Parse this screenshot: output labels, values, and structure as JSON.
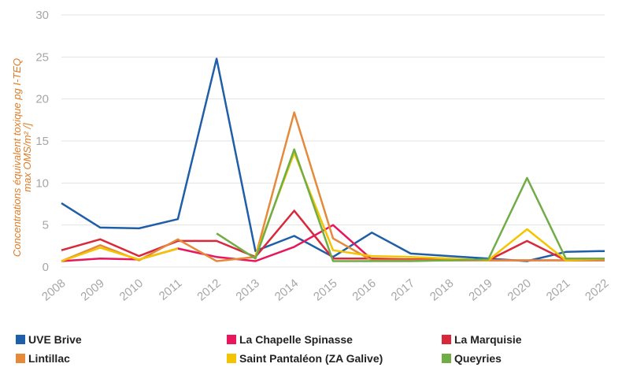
{
  "chart_data": {
    "type": "line",
    "x": [
      "2008",
      "2009",
      "2010",
      "2011",
      "2012",
      "2013",
      "2014",
      "2015",
      "2016",
      "2017",
      "2018",
      "2019",
      "2020",
      "2021",
      "2022"
    ],
    "ylabel_line1": "Concentrations équivalent toxique pg I-TEQ",
    "ylabel_line2": "max OMS/m² /]",
    "ylim": [
      0,
      30
    ],
    "yticks": [
      "0",
      "5",
      "10",
      "15",
      "20",
      "25",
      "30"
    ],
    "grid": true,
    "legend_position": "bottom",
    "series": [
      {
        "name": "UVE Brive",
        "color": "#1f5ea8",
        "values": [
          7.6,
          4.7,
          4.6,
          5.7,
          24.8,
          1.9,
          3.7,
          1.2,
          4.1,
          1.6,
          1.3,
          1.0,
          0.7,
          1.8,
          1.9
        ]
      },
      {
        "name": "La Chapelle Spinasse",
        "color": "#e8175d",
        "values": [
          0.7,
          1.0,
          0.9,
          2.2,
          1.2,
          0.7,
          2.4,
          5.0,
          0.9,
          0.9,
          0.8,
          0.8,
          0.8,
          0.8,
          0.8
        ]
      },
      {
        "name": "La Marquisie",
        "color": "#d9283a",
        "values": [
          2.0,
          3.3,
          1.3,
          3.1,
          3.1,
          1.2,
          6.7,
          1.0,
          1.0,
          0.9,
          0.9,
          0.8,
          3.1,
          0.8,
          0.8
        ]
      },
      {
        "name": "Lintillac",
        "color": "#e58a3a",
        "values": [
          0.7,
          2.6,
          0.8,
          3.3,
          0.7,
          1.2,
          18.4,
          3.4,
          0.8,
          0.8,
          0.8,
          0.8,
          0.8,
          0.8,
          0.8
        ]
      },
      {
        "name": "Saint Pantaléon (ZA Galive)",
        "color": "#f5c400",
        "values": [
          0.7,
          2.3,
          0.9,
          2.2,
          null,
          1.3,
          13.6,
          2.0,
          1.3,
          1.2,
          1.0,
          0.8,
          4.5,
          0.8,
          1.0
        ]
      },
      {
        "name": "Queyries",
        "color": "#70ad47",
        "values": [
          null,
          null,
          null,
          null,
          4.0,
          1.0,
          14.0,
          0.7,
          0.7,
          0.7,
          0.8,
          0.9,
          10.6,
          1.0,
          1.0
        ]
      }
    ]
  }
}
